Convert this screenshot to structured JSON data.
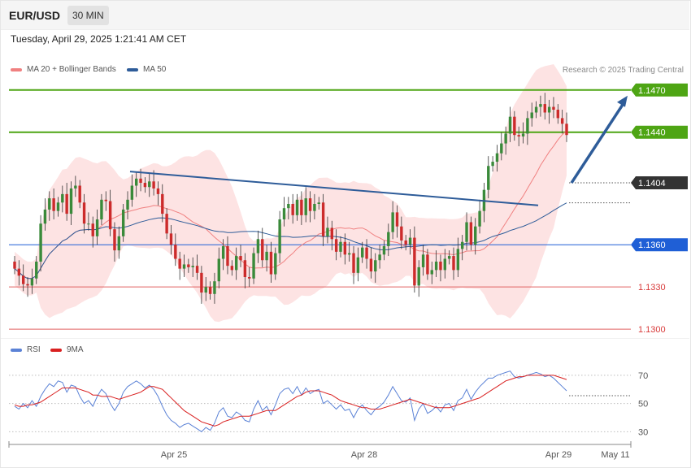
{
  "header": {
    "symbol": "EUR/USD",
    "timeframe": "30 MIN"
  },
  "timestamp": "Tuesday, April 29, 2025 1:21:41 AM CET",
  "legend": {
    "ma20": {
      "label": "MA 20 + Bollinger Bands",
      "color": "#f08080"
    },
    "ma50": {
      "label": "MA 50",
      "color": "#2e5c99"
    }
  },
  "credit": "Research © 2025 Trading Central",
  "rsi_legend": {
    "rsi": {
      "label": "RSI",
      "color": "#5b82d6"
    },
    "ma9": {
      "label": "9MA",
      "color": "#d92020"
    }
  },
  "colors": {
    "up": "#3a8a3a",
    "down": "#cc2b2b",
    "band_fill": "#fde3e3",
    "resistance": "#4ea514",
    "support_blue": "#1f5fd6",
    "support_red": "#e06060",
    "trend": "#2e5c99",
    "last_price": "#333333"
  },
  "chart_data": [
    {
      "type": "candlestick",
      "title": "EUR/USD",
      "xlabel": "",
      "ylabel": "",
      "x_ticks": [
        "Apr 25",
        "Apr 28",
        "Apr 29",
        "May 11"
      ],
      "ylim": [
        1.1296,
        1.1482
      ],
      "levels": [
        {
          "value": 1.147,
          "label": "1.1470",
          "kind": "resistance"
        },
        {
          "value": 1.144,
          "label": "1.1440",
          "kind": "resistance"
        },
        {
          "value": 1.1404,
          "label": "1.1404",
          "kind": "last"
        },
        {
          "value": 1.136,
          "label": "1.1360",
          "kind": "pivot"
        },
        {
          "value": 1.133,
          "label": "1.1330",
          "kind": "support"
        },
        {
          "value": 1.13,
          "label": "1.1300",
          "kind": "support"
        }
      ],
      "closes": [
        1.1343,
        1.1338,
        1.1332,
        1.1331,
        1.1336,
        1.1348,
        1.1375,
        1.1385,
        1.1393,
        1.1384,
        1.139,
        1.1396,
        1.1382,
        1.14,
        1.1402,
        1.139,
        1.1375,
        1.1375,
        1.1366,
        1.1378,
        1.1392,
        1.1391,
        1.1371,
        1.1356,
        1.1366,
        1.1385,
        1.1392,
        1.1402,
        1.1407,
        1.1404,
        1.1401,
        1.1405,
        1.14,
        1.1396,
        1.1382,
        1.1368,
        1.136,
        1.135,
        1.1343,
        1.1346,
        1.1344,
        1.1345,
        1.134,
        1.1326,
        1.133,
        1.1325,
        1.1334,
        1.135,
        1.1359,
        1.1345,
        1.1342,
        1.1352,
        1.1349,
        1.1337,
        1.1336,
        1.1354,
        1.1364,
        1.1349,
        1.1355,
        1.1339,
        1.1354,
        1.1378,
        1.1386,
        1.1389,
        1.1381,
        1.1392,
        1.1381,
        1.1393,
        1.1384,
        1.1389,
        1.139,
        1.1366,
        1.1372,
        1.1364,
        1.1355,
        1.1362,
        1.1353,
        1.1354,
        1.134,
        1.1351,
        1.1358,
        1.135,
        1.1341,
        1.1349,
        1.1353,
        1.1359,
        1.1369,
        1.1383,
        1.1373,
        1.1363,
        1.136,
        1.1365,
        1.1331,
        1.1344,
        1.1353,
        1.1339,
        1.1342,
        1.1348,
        1.1342,
        1.135,
        1.1352,
        1.1342,
        1.1357,
        1.1362,
        1.1376,
        1.136,
        1.1373,
        1.1384,
        1.1399,
        1.1416,
        1.1419,
        1.1425,
        1.1432,
        1.1439,
        1.1451,
        1.1438,
        1.1437,
        1.1439,
        1.145,
        1.1454,
        1.1458,
        1.146,
        1.1454,
        1.1458,
        1.1456,
        1.145,
        1.1446,
        1.1438
      ],
      "ma20_approx": {
        "start": 1.133,
        "end": 1.1418
      },
      "ma50_approx": {
        "start": 1.1361,
        "end": 1.1385
      },
      "trendline": {
        "from": 1.1412,
        "to": 1.1388
      },
      "arrow_target": 1.1466
    },
    {
      "type": "line",
      "title": "RSI",
      "ylim": [
        25,
        78
      ],
      "y_ticks": [
        30,
        50,
        70
      ],
      "series": [
        {
          "name": "RSI",
          "values": [
            48,
            46,
            50,
            47,
            52,
            48,
            55,
            60,
            64,
            62,
            66,
            65,
            58,
            63,
            62,
            55,
            50,
            52,
            48,
            55,
            60,
            57,
            50,
            45,
            50,
            58,
            62,
            64,
            66,
            64,
            61,
            63,
            60,
            55,
            48,
            42,
            38,
            36,
            33,
            35,
            36,
            34,
            32,
            30,
            33,
            31,
            36,
            44,
            47,
            41,
            40,
            44,
            42,
            38,
            37,
            46,
            52,
            45,
            48,
            42,
            49,
            57,
            60,
            61,
            57,
            62,
            56,
            61,
            57,
            59,
            60,
            50,
            52,
            49,
            46,
            49,
            45,
            46,
            40,
            46,
            49,
            45,
            42,
            46,
            48,
            51,
            56,
            62,
            57,
            52,
            51,
            54,
            38,
            46,
            50,
            43,
            45,
            48,
            44,
            49,
            50,
            45,
            52,
            54,
            60,
            53,
            58,
            62,
            65,
            68,
            68,
            70,
            71,
            72,
            73,
            69,
            68,
            69,
            70,
            71,
            72,
            71,
            69,
            70,
            68,
            65,
            62,
            59
          ]
        },
        {
          "name": "9MA",
          "values": [
            49,
            48,
            48,
            49,
            49,
            50,
            51,
            53,
            55,
            57,
            59,
            61,
            61,
            61,
            61,
            60,
            59,
            58,
            56,
            56,
            55,
            55,
            55,
            54,
            53,
            54,
            55,
            56,
            57,
            58,
            60,
            62,
            62,
            61,
            60,
            57,
            54,
            51,
            48,
            45,
            43,
            41,
            39,
            37,
            36,
            35,
            34,
            35,
            37,
            38,
            39,
            40,
            41,
            41,
            41,
            42,
            43,
            44,
            45,
            45,
            45,
            47,
            49,
            51,
            53,
            55,
            56,
            58,
            59,
            59,
            59,
            58,
            57,
            56,
            54,
            52,
            51,
            50,
            49,
            48,
            47,
            47,
            46,
            46,
            46,
            47,
            48,
            49,
            50,
            51,
            52,
            53,
            52,
            51,
            50,
            49,
            48,
            47,
            47,
            47,
            47,
            48,
            49,
            50,
            51,
            52,
            53,
            54,
            56,
            58,
            60,
            62,
            64,
            66,
            67,
            68,
            69,
            69,
            70,
            70,
            70,
            70,
            70,
            70,
            70,
            69,
            68,
            67
          ]
        }
      ]
    }
  ]
}
